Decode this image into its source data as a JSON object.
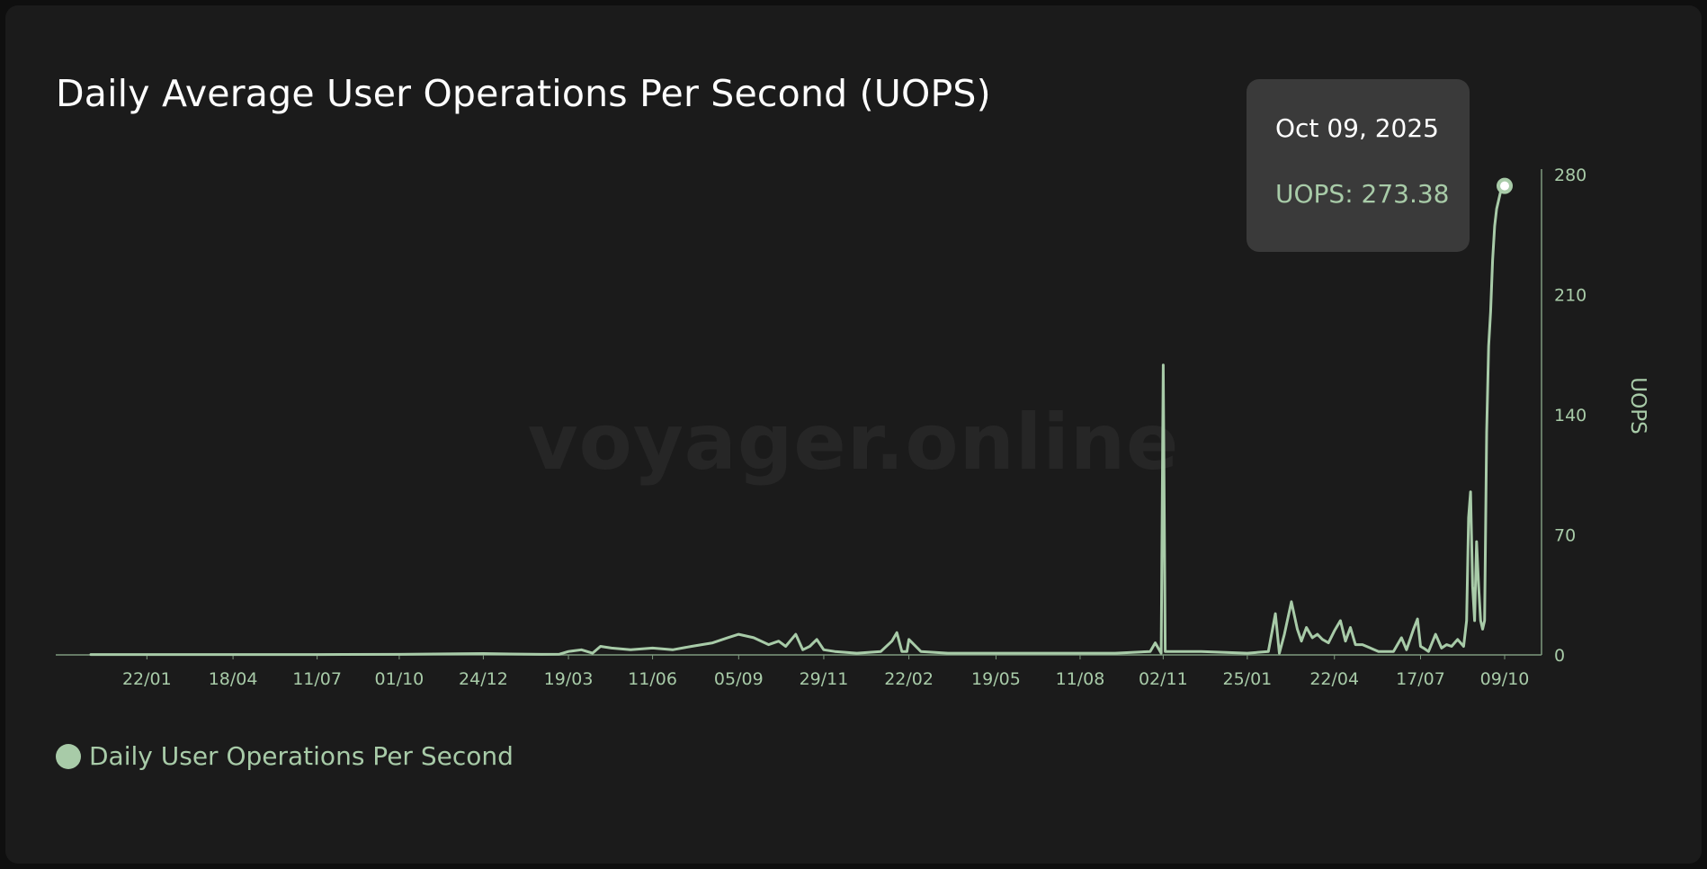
{
  "watermark": "voyager.online",
  "tooltip": {
    "date": "Oct 09, 2025",
    "value_text": "UOPS: 273.38"
  },
  "chart_data": {
    "type": "line",
    "title": "Daily Average User Operations Per Second (UOPS)",
    "xlabel": "",
    "ylabel": "UOPS",
    "y_axis_position": "right",
    "ylim": [
      0,
      280
    ],
    "y_ticks": [
      0,
      70,
      140,
      210,
      280
    ],
    "x_tick_labels": [
      "22/01",
      "18/04",
      "11/07",
      "01/10",
      "24/12",
      "19/03",
      "11/06",
      "05/09",
      "29/11",
      "22/02",
      "19/05",
      "11/08",
      "02/11",
      "25/01",
      "22/04",
      "17/07",
      "09/10"
    ],
    "x_tick_dates": [
      "2022-01-22",
      "2022-04-18",
      "2022-07-11",
      "2022-10-01",
      "2022-12-24",
      "2023-03-19",
      "2023-06-11",
      "2023-09-05",
      "2023-11-29",
      "2024-02-22",
      "2024-05-19",
      "2024-08-11",
      "2024-11-02",
      "2025-01-25",
      "2025-04-22",
      "2025-07-17",
      "2025-10-09"
    ],
    "grid": false,
    "legend_position": "bottom-left",
    "line_color": "#a8cba8",
    "highlight": {
      "x": "2025-10-09",
      "y": 273.38
    },
    "series": [
      {
        "name": "Daily User Operations Per Second",
        "x": [
          "2021-11-27",
          "2022-01-22",
          "2022-04-18",
          "2022-07-11",
          "2022-10-01",
          "2022-12-24",
          "2023-01-20",
          "2023-02-20",
          "2023-03-10",
          "2023-03-19",
          "2023-04-01",
          "2023-04-12",
          "2023-04-20",
          "2023-05-01",
          "2023-05-20",
          "2023-06-11",
          "2023-07-01",
          "2023-07-20",
          "2023-08-10",
          "2023-08-25",
          "2023-09-05",
          "2023-09-20",
          "2023-10-05",
          "2023-10-15",
          "2023-10-22",
          "2023-11-01",
          "2023-11-08",
          "2023-11-15",
          "2023-11-22",
          "2023-11-29",
          "2023-12-10",
          "2024-01-01",
          "2024-01-25",
          "2024-02-05",
          "2024-02-10",
          "2024-02-15",
          "2024-02-20",
          "2024-02-22",
          "2024-03-05",
          "2024-04-01",
          "2024-05-19",
          "2024-06-15",
          "2024-08-11",
          "2024-09-15",
          "2024-10-20",
          "2024-10-25",
          "2024-10-31",
          "2024-11-02",
          "2024-11-04",
          "2024-11-10",
          "2024-12-10",
          "2025-01-25",
          "2025-02-15",
          "2025-02-22",
          "2025-02-26",
          "2025-03-03",
          "2025-03-10",
          "2025-03-16",
          "2025-03-20",
          "2025-03-25",
          "2025-03-31",
          "2025-04-05",
          "2025-04-10",
          "2025-04-16",
          "2025-04-22",
          "2025-04-28",
          "2025-05-03",
          "2025-05-08",
          "2025-05-13",
          "2025-05-20",
          "2025-06-05",
          "2025-06-20",
          "2025-06-28",
          "2025-07-03",
          "2025-07-10",
          "2025-07-14",
          "2025-07-17",
          "2025-07-20",
          "2025-07-25",
          "2025-08-01",
          "2025-08-07",
          "2025-08-12",
          "2025-08-17",
          "2025-08-23",
          "2025-08-29",
          "2025-09-01",
          "2025-09-03",
          "2025-09-05",
          "2025-09-07",
          "2025-09-09",
          "2025-09-11",
          "2025-09-13",
          "2025-09-15",
          "2025-09-17",
          "2025-09-19",
          "2025-09-21",
          "2025-09-23",
          "2025-09-25",
          "2025-09-27",
          "2025-09-29",
          "2025-10-01",
          "2025-10-03",
          "2025-10-05",
          "2025-10-07",
          "2025-10-09"
        ],
        "y": [
          0.2,
          0.2,
          0.2,
          0.2,
          0.3,
          0.8,
          0.5,
          0.3,
          0.4,
          2,
          3,
          1,
          5,
          4,
          3,
          4,
          3,
          5,
          7,
          10,
          12,
          10,
          6,
          8,
          5,
          12,
          3,
          5,
          9,
          3,
          2,
          1,
          2,
          8,
          13,
          2,
          2,
          9,
          2,
          1,
          1,
          1,
          1,
          1,
          2,
          7,
          1,
          169,
          2,
          2,
          2,
          1,
          2,
          24,
          1,
          12,
          31,
          15,
          8,
          16,
          10,
          12,
          9,
          7,
          14,
          20,
          8,
          16,
          6,
          6,
          2,
          2,
          10,
          3,
          15,
          21,
          5,
          4,
          2,
          12,
          4,
          6,
          5,
          9,
          5,
          20,
          80,
          95,
          40,
          20,
          66,
          40,
          20,
          15,
          20,
          130,
          180,
          200,
          230,
          250,
          260,
          265,
          270,
          272,
          273.38
        ]
      }
    ]
  }
}
